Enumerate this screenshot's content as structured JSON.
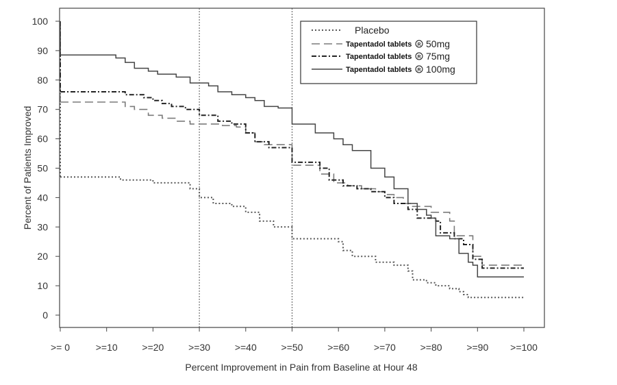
{
  "chart_data": {
    "type": "line",
    "subtype": "step",
    "title": "",
    "xlabel": "Percent Improvement in Pain from Baseline at Hour 48",
    "ylabel": "Percent of Patients Improved",
    "xlim": [
      0,
      100
    ],
    "ylim": [
      0,
      100
    ],
    "xticks": [
      0,
      10,
      20,
      30,
      40,
      50,
      60,
      70,
      80,
      90,
      100
    ],
    "xtick_labels": [
      ">= 0",
      ">=10",
      ">=20",
      ">=30",
      ">=40",
      ">=50",
      ">=60",
      ">=70",
      ">=80",
      ">=90",
      ">=100"
    ],
    "yticks": [
      0,
      10,
      20,
      30,
      40,
      50,
      60,
      70,
      80,
      90,
      100
    ],
    "ytick_labels": [
      "0",
      "10",
      "20",
      "30",
      "40",
      "50",
      "60",
      "70",
      "80",
      "90",
      "100"
    ],
    "reference_lines_x": [
      30,
      50
    ],
    "grid": false,
    "legend_position": "top-right",
    "series": [
      {
        "name": "Placebo",
        "legend_text": "Placebo",
        "legend_suffix": "",
        "style": "dotted",
        "color": "#555555",
        "points": [
          [
            0,
            47
          ],
          [
            10,
            47
          ],
          [
            13,
            46
          ],
          [
            20,
            45
          ],
          [
            24,
            45
          ],
          [
            28,
            43
          ],
          [
            30,
            40
          ],
          [
            33,
            38
          ],
          [
            37,
            37
          ],
          [
            40,
            35
          ],
          [
            43,
            32
          ],
          [
            46,
            30
          ],
          [
            50,
            30
          ],
          [
            50,
            26
          ],
          [
            55,
            26
          ],
          [
            60,
            25
          ],
          [
            61,
            22
          ],
          [
            63,
            20
          ],
          [
            67,
            20
          ],
          [
            68,
            18
          ],
          [
            72,
            17
          ],
          [
            75,
            15
          ],
          [
            76,
            12
          ],
          [
            79,
            11
          ],
          [
            81,
            10
          ],
          [
            84,
            9
          ],
          [
            86,
            8
          ],
          [
            87,
            7
          ],
          [
            88,
            6
          ],
          [
            100,
            6
          ]
        ]
      },
      {
        "name": "Tapentadol tablets 50mg",
        "legend_text": "Tapentadol tablets",
        "legend_suffix": "50mg",
        "style": "long-dash",
        "color": "#7a7a7a",
        "points": [
          [
            0,
            72.5
          ],
          [
            12,
            72.5
          ],
          [
            14,
            71
          ],
          [
            16,
            70
          ],
          [
            19,
            68
          ],
          [
            22,
            67
          ],
          [
            25,
            66
          ],
          [
            28,
            65
          ],
          [
            31,
            65
          ],
          [
            35,
            64.5
          ],
          [
            38,
            64
          ],
          [
            40,
            62
          ],
          [
            42,
            59
          ],
          [
            44,
            58
          ],
          [
            50,
            58
          ],
          [
            50,
            51
          ],
          [
            52,
            51
          ],
          [
            56,
            48
          ],
          [
            59,
            45
          ],
          [
            62,
            44
          ],
          [
            65,
            43
          ],
          [
            68,
            42
          ],
          [
            70,
            41
          ],
          [
            72,
            40
          ],
          [
            74,
            38
          ],
          [
            76,
            37
          ],
          [
            80,
            35
          ],
          [
            84,
            32
          ],
          [
            85,
            27
          ],
          [
            88,
            27
          ],
          [
            89,
            20
          ],
          [
            91,
            17
          ],
          [
            100,
            17
          ]
        ]
      },
      {
        "name": "Tapentadol tablets 75mg",
        "legend_text": "Tapentadol tablets",
        "legend_suffix": "75mg",
        "style": "dash-dot",
        "color": "#222222",
        "points": [
          [
            0,
            76
          ],
          [
            11,
            76
          ],
          [
            14,
            75
          ],
          [
            18,
            74
          ],
          [
            20,
            73
          ],
          [
            22,
            72
          ],
          [
            24,
            71
          ],
          [
            27,
            70
          ],
          [
            30,
            68
          ],
          [
            34,
            66
          ],
          [
            37,
            65
          ],
          [
            40,
            62
          ],
          [
            42,
            59
          ],
          [
            45,
            57
          ],
          [
            48,
            57
          ],
          [
            50,
            52
          ],
          [
            53,
            52
          ],
          [
            56,
            50
          ],
          [
            58,
            46
          ],
          [
            61,
            44
          ],
          [
            64,
            43
          ],
          [
            67,
            42
          ],
          [
            70,
            40
          ],
          [
            72,
            38
          ],
          [
            75,
            36
          ],
          [
            77,
            33
          ],
          [
            81,
            32
          ],
          [
            82,
            28
          ],
          [
            85,
            26
          ],
          [
            87,
            24
          ],
          [
            89,
            19
          ],
          [
            91,
            16
          ],
          [
            100,
            16
          ]
        ]
      },
      {
        "name": "Tapentadol tablets 100mg",
        "legend_text": "Tapentadol tablets",
        "legend_suffix": "100mg",
        "style": "solid",
        "color": "#444444",
        "points": [
          [
            0,
            88.5
          ],
          [
            9,
            88.5
          ],
          [
            12,
            87.5
          ],
          [
            14,
            86
          ],
          [
            16,
            84
          ],
          [
            19,
            83
          ],
          [
            21,
            82
          ],
          [
            25,
            81
          ],
          [
            28,
            79
          ],
          [
            32,
            78
          ],
          [
            34,
            76
          ],
          [
            37,
            75
          ],
          [
            40,
            74
          ],
          [
            42,
            73
          ],
          [
            44,
            71
          ],
          [
            47,
            70.5
          ],
          [
            50,
            70.5
          ],
          [
            50,
            65
          ],
          [
            55,
            62
          ],
          [
            59,
            60
          ],
          [
            61,
            58
          ],
          [
            63,
            56
          ],
          [
            67,
            50
          ],
          [
            70,
            47
          ],
          [
            72,
            43
          ],
          [
            75,
            38
          ],
          [
            77,
            36
          ],
          [
            79,
            34
          ],
          [
            80,
            33
          ],
          [
            81,
            27
          ],
          [
            84,
            26
          ],
          [
            86,
            21
          ],
          [
            88,
            18
          ],
          [
            89,
            17
          ],
          [
            90,
            13
          ],
          [
            100,
            13
          ]
        ]
      }
    ]
  }
}
